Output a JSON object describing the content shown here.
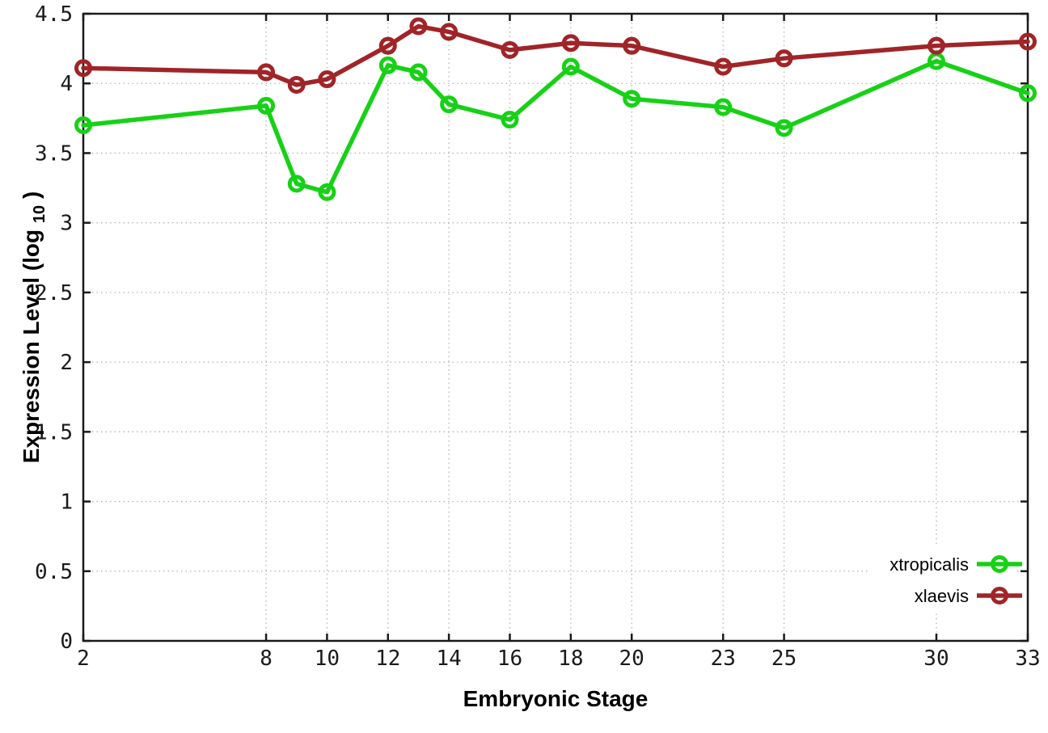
{
  "chart_data": {
    "type": "line",
    "title": "",
    "xlabel": "Embryonic Stage",
    "ylabel_parts": {
      "prefix": "Expression Level (log",
      "sub": "10",
      "suffix": ")"
    },
    "xlim": [
      2,
      33
    ],
    "ylim": [
      0,
      4.5
    ],
    "grid": true,
    "legend_position": "bottom-right",
    "x": [
      2,
      8,
      9,
      10,
      12,
      13,
      14,
      16,
      18,
      20,
      23,
      25,
      30,
      33
    ],
    "x_tick_values": [
      2,
      8,
      10,
      12,
      14,
      16,
      18,
      20,
      23,
      25,
      30,
      33
    ],
    "x_tick_labels": [
      "2",
      "8",
      "10",
      "12",
      "14",
      "16",
      "18",
      "20",
      "23",
      "25",
      "30",
      "33"
    ],
    "y_tick_values": [
      0,
      0.5,
      1,
      1.5,
      2,
      2.5,
      3,
      3.5,
      4,
      4.5
    ],
    "y_tick_labels": [
      "0",
      "0.5",
      "1",
      "1.5",
      "2",
      "2.5",
      "3",
      "3.5",
      "4",
      "4.5"
    ],
    "series": [
      {
        "name": "xtropicalis",
        "color": "#17d117",
        "values": [
          3.7,
          3.84,
          3.28,
          3.22,
          4.13,
          4.08,
          3.85,
          3.74,
          4.12,
          3.89,
          3.83,
          3.68,
          4.16,
          3.93
        ]
      },
      {
        "name": "xlaevis",
        "color": "#a02428",
        "values": [
          4.11,
          4.08,
          3.99,
          4.03,
          4.27,
          4.41,
          4.37,
          4.24,
          4.29,
          4.27,
          4.12,
          4.18,
          4.27,
          4.3
        ]
      }
    ],
    "colors": {
      "background": "#ffffff",
      "axis": "#1a1a1a",
      "grid": "#b4b4b4"
    }
  }
}
